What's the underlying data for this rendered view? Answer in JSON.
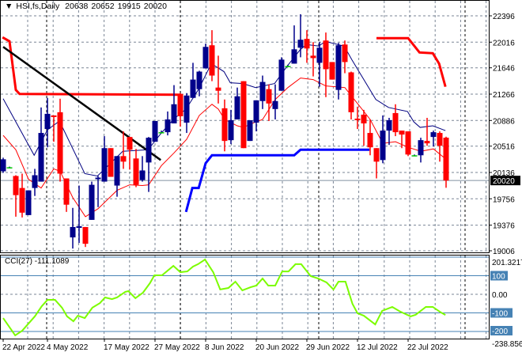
{
  "header": {
    "symbol": "HSI,fs,Daily",
    "open": "20638",
    "high": "20652",
    "low": "19915",
    "close": "20020"
  },
  "cci_header": {
    "name": "CCI(27)",
    "value": "-111.1089"
  },
  "colors": {
    "bull": "#00008B",
    "bear": "#FF0000",
    "doji": "#00C800",
    "ma_fast": "#FF0000",
    "ma_slow": "#000080",
    "resistance": "#FF0000",
    "support": "#0000FF",
    "trendline": "#000000",
    "cci": "#7CFC00",
    "level": "#4682B4"
  },
  "chart_data": [
    {
      "type": "candlestick",
      "title": "HSI,fs,Daily",
      "ylim": [
        19006,
        22396
      ],
      "y_ticks": [
        "22396",
        "22016",
        "21646",
        "21266",
        "20886",
        "20516",
        "20136",
        "19756",
        "19376",
        "19006"
      ],
      "current_price": "20020",
      "x_labels": [
        {
          "slot": 0,
          "text": "22 Apr 2022"
        },
        {
          "slot": 7,
          "text": "4 May 2022"
        },
        {
          "slot": 16,
          "text": "17 May 2022"
        },
        {
          "slot": 24,
          "text": "27 May 2022"
        },
        {
          "slot": 32,
          "text": "8 Jun 2022"
        },
        {
          "slot": 40,
          "text": "20 Jun 2022"
        },
        {
          "slot": 48,
          "text": "29 Jun 2022"
        },
        {
          "slot": 56,
          "text": "12 Jul 2022"
        },
        {
          "slot": 64,
          "text": "22 Jul 2022"
        }
      ],
      "ohlc": [
        [
          20153,
          20349,
          20130,
          20326
        ],
        [
          20211,
          20220,
          20200,
          20211
        ],
        [
          20085,
          20096,
          19498,
          19809
        ],
        [
          19912,
          20119,
          19487,
          19556
        ],
        [
          19521,
          19878,
          19521,
          19878
        ],
        [
          19912,
          20188,
          19797,
          20096
        ],
        [
          20004,
          21074,
          20004,
          20706
        ],
        [
          20763,
          21212,
          20499,
          20982
        ],
        [
          20959,
          20959,
          20579,
          20936
        ],
        [
          21005,
          21200,
          20004,
          20119
        ],
        [
          20050,
          20050,
          19567,
          19671
        ],
        [
          19199,
          19625,
          19038,
          19349
        ],
        [
          19337,
          19947,
          19119,
          19360
        ],
        [
          19349,
          19349,
          19061,
          19107
        ],
        [
          19452,
          20004,
          19452,
          19958
        ],
        [
          20039,
          20085,
          19636,
          20062
        ],
        [
          20004,
          20660,
          20004,
          20487
        ],
        [
          20487,
          20487,
          20073,
          20073
        ],
        [
          19947,
          20372,
          19786,
          20372
        ],
        [
          20372,
          20729,
          20188,
          20292
        ],
        [
          20648,
          20648,
          20177,
          20464
        ],
        [
          20338,
          20476,
          19924,
          19958
        ],
        [
          20027,
          20372,
          20004,
          20165
        ],
        [
          20280,
          20648,
          19855,
          20637
        ],
        [
          20579,
          20878,
          20579,
          20878
        ],
        [
          20717,
          20740,
          20706,
          20717
        ],
        [
          20717,
          21016,
          20671,
          20901
        ],
        [
          20844,
          21396,
          20844,
          21120
        ],
        [
          21269,
          21281,
          20798,
          20947
        ],
        [
          20855,
          21281,
          20706,
          21246
        ],
        [
          21212,
          21718,
          21212,
          21476
        ],
        [
          21338,
          21603,
          21235,
          21591
        ],
        [
          21637,
          21994,
          21637,
          21948
        ],
        [
          21971,
          22189,
          21453,
          21534
        ],
        [
          21361,
          21821,
          21131,
          21315
        ],
        [
          21062,
          21189,
          20441,
          20591
        ],
        [
          20602,
          21039,
          20545,
          20890
        ],
        [
          20901,
          21361,
          20901,
          21235
        ],
        [
          21453,
          21453,
          20487,
          20487
        ],
        [
          20591,
          20890,
          20591,
          20890
        ],
        [
          20855,
          21177,
          20729,
          21177
        ],
        [
          21166,
          21534,
          21051,
          21442
        ],
        [
          21338,
          21407,
          20878,
          21131
        ],
        [
          21051,
          21407,
          20901,
          21166
        ],
        [
          21315,
          21798,
          21315,
          21764
        ],
        [
          21672,
          21690,
          21660,
          21672
        ],
        [
          21706,
          22258,
          21706,
          21913
        ],
        [
          21936,
          22419,
          21798,
          22051
        ],
        [
          22063,
          22189,
          21718,
          21925
        ],
        [
          21821,
          22017,
          21522,
          21786
        ],
        [
          21718,
          22017,
          21373,
          21936
        ],
        [
          22040,
          22155,
          21223,
          21626
        ],
        [
          21729,
          21729,
          21476,
          21476
        ],
        [
          21327,
          22005,
          21189,
          21971
        ],
        [
          21982,
          22040,
          21568,
          21729
        ],
        [
          21580,
          21591,
          20901,
          21005
        ],
        [
          20913,
          21085,
          20763,
          20890
        ],
        [
          20970,
          21039,
          20521,
          20844
        ],
        [
          20706,
          20901,
          20384,
          20499
        ],
        [
          20487,
          20487,
          20050,
          20292
        ],
        [
          20315,
          20959,
          20269,
          20740
        ],
        [
          20740,
          20924,
          20533,
          20890
        ],
        [
          20993,
          21120,
          20660,
          20717
        ],
        [
          20740,
          20740,
          20487,
          20683
        ],
        [
          20729,
          20729,
          20372,
          20395
        ],
        [
          20384,
          20395,
          20375,
          20384
        ],
        [
          20384,
          20637,
          20280,
          20602
        ],
        [
          20591,
          20924,
          20521,
          20556
        ],
        [
          20648,
          20740,
          20510,
          20717
        ],
        [
          20706,
          20729,
          20292,
          20521
        ],
        [
          20638,
          20652,
          19915,
          20020
        ]
      ],
      "overlays": [
        {
          "name": "ma-slow",
          "color": "#000080",
          "width": 1,
          "points": [
            [
              0,
              21200
            ],
            [
              4.9,
              20384
            ],
            [
              7,
              20751
            ],
            [
              8.9,
              20878
            ],
            [
              12.9,
              20119
            ],
            [
              14.9,
              20085
            ],
            [
              18.9,
              20441
            ],
            [
              22.9,
              20464
            ],
            [
              24.9,
              20694
            ],
            [
              26.9,
              20901
            ],
            [
              28.9,
              21051
            ],
            [
              30.9,
              21338
            ],
            [
              32.9,
              21706
            ],
            [
              34.9,
              21591
            ],
            [
              35.9,
              21430
            ],
            [
              37.9,
              21419
            ],
            [
              39.9,
              21361
            ],
            [
              42.9,
              21419
            ],
            [
              44.9,
              21672
            ],
            [
              46.9,
              21902
            ],
            [
              47.9,
              21982
            ],
            [
              49.9,
              21959
            ],
            [
              50.9,
              22028
            ],
            [
              53.9,
              21959
            ],
            [
              55.1,
              21764
            ],
            [
              58.9,
              21189
            ],
            [
              60.9,
              21074
            ],
            [
              63.9,
              21016
            ],
            [
              64.9,
              20866
            ],
            [
              65.9,
              20786
            ],
            [
              67.9,
              20809
            ],
            [
              69.9,
              20740
            ]
          ]
        },
        {
          "name": "ma-fast",
          "color": "#FF0000",
          "width": 1,
          "points": [
            [
              0,
              20671
            ],
            [
              2,
              20464
            ],
            [
              4,
              20039
            ],
            [
              6,
              19912
            ],
            [
              8,
              20188
            ],
            [
              9,
              20153
            ],
            [
              11,
              19774
            ],
            [
              13,
              19498
            ],
            [
              15,
              19613
            ],
            [
              18,
              19878
            ],
            [
              20,
              19958
            ],
            [
              22,
              19947
            ],
            [
              23,
              19958
            ],
            [
              25,
              20234
            ],
            [
              27,
              20418
            ],
            [
              29,
              20614
            ],
            [
              31,
              20959
            ],
            [
              33,
              21120
            ],
            [
              34,
              21051
            ],
            [
              35,
              20901
            ],
            [
              37,
              20809
            ],
            [
              38,
              20786
            ],
            [
              39,
              20832
            ],
            [
              41,
              20901
            ],
            [
              43,
              21189
            ],
            [
              45,
              21361
            ],
            [
              47,
              21499
            ],
            [
              49,
              21476
            ],
            [
              51,
              21384
            ],
            [
              54,
              21361
            ],
            [
              56,
              21131
            ],
            [
              58,
              20901
            ],
            [
              60,
              20556
            ],
            [
              62,
              20579
            ],
            [
              64,
              20499
            ],
            [
              66,
              20441
            ],
            [
              68,
              20476
            ],
            [
              70,
              20326
            ]
          ]
        },
        {
          "name": "resistance-line",
          "color": "#FF0000",
          "width": 3,
          "points": [
            [
              -0.1,
              22086
            ],
            [
              1,
              22028
            ],
            [
              2,
              21327
            ],
            [
              2.6,
              21269
            ],
            [
              28,
              21258
            ]
          ]
        },
        {
          "name": "resistance-line-2",
          "color": "#FF0000",
          "width": 3,
          "points": [
            [
              59,
              22074
            ],
            [
              64,
              22074
            ],
            [
              65.8,
              21867
            ],
            [
              67.9,
              21856
            ],
            [
              68.9,
              21706
            ],
            [
              69.9,
              21373
            ]
          ]
        },
        {
          "name": "support-line",
          "color": "#0000FF",
          "width": 3,
          "points": [
            [
              28.9,
              19567
            ],
            [
              29.9,
              19912
            ],
            [
              30.9,
              19912
            ],
            [
              32,
              20269
            ],
            [
              33,
              20384
            ],
            [
              46,
              20384
            ],
            [
              47,
              20464
            ],
            [
              57.9,
              20464
            ]
          ]
        },
        {
          "name": "trendline",
          "color": "#000000",
          "width": 2.5,
          "points": [
            [
              0,
              21948
            ],
            [
              24.9,
              20315
            ]
          ]
        }
      ]
    },
    {
      "type": "line",
      "title": "CCI(27)",
      "ylim": [
        -238.856,
        201.3217
      ],
      "y_ticks": [
        "201.3217",
        "100",
        "0.00",
        "-100",
        "-200",
        "-238.856"
      ],
      "levels": [
        100,
        -100,
        -200
      ],
      "points": [
        [
          0,
          -128
        ],
        [
          1.9,
          -221
        ],
        [
          3,
          -196
        ],
        [
          5,
          -119
        ],
        [
          6.1,
          -64
        ],
        [
          7,
          -30
        ],
        [
          8.2,
          -30
        ],
        [
          9.3,
          -72
        ],
        [
          10.1,
          -119
        ],
        [
          11.1,
          -145
        ],
        [
          11.8,
          -115
        ],
        [
          12.9,
          -128
        ],
        [
          14.1,
          -72
        ],
        [
          15.3,
          -47
        ],
        [
          16.1,
          -17
        ],
        [
          17.2,
          -26
        ],
        [
          18,
          -17
        ],
        [
          19.3,
          13
        ],
        [
          19.8,
          17
        ],
        [
          20.9,
          -21
        ],
        [
          22.1,
          9
        ],
        [
          23.2,
          60
        ],
        [
          23.9,
          102
        ],
        [
          25.1,
          102
        ],
        [
          26.9,
          153
        ],
        [
          28,
          119
        ],
        [
          29.1,
          123
        ],
        [
          30,
          149
        ],
        [
          30.8,
          162
        ],
        [
          31.9,
          187
        ],
        [
          33.2,
          119
        ],
        [
          34.3,
          26
        ],
        [
          35.6,
          34
        ],
        [
          36.7,
          68
        ],
        [
          37.8,
          21
        ],
        [
          39.1,
          38
        ],
        [
          40,
          47
        ],
        [
          41,
          85
        ],
        [
          41.9,
          47
        ],
        [
          43,
          47
        ],
        [
          44.1,
          123
        ],
        [
          45.1,
          123
        ],
        [
          46.2,
          162
        ],
        [
          47.1,
          162
        ],
        [
          48.6,
          98
        ],
        [
          49.8,
          85
        ],
        [
          51.1,
          64
        ],
        [
          52.2,
          26
        ],
        [
          53,
          68
        ],
        [
          54.1,
          68
        ],
        [
          55.2,
          -51
        ],
        [
          56,
          -102
        ],
        [
          57,
          -115
        ],
        [
          58.8,
          -162
        ],
        [
          59.9,
          -89
        ],
        [
          61.5,
          -68
        ],
        [
          62.8,
          -94
        ],
        [
          64.4,
          -119
        ],
        [
          65.2,
          -110
        ],
        [
          66.8,
          -68
        ],
        [
          67.9,
          -68
        ],
        [
          69.2,
          -98
        ],
        [
          69.9,
          -111
        ]
      ]
    }
  ]
}
